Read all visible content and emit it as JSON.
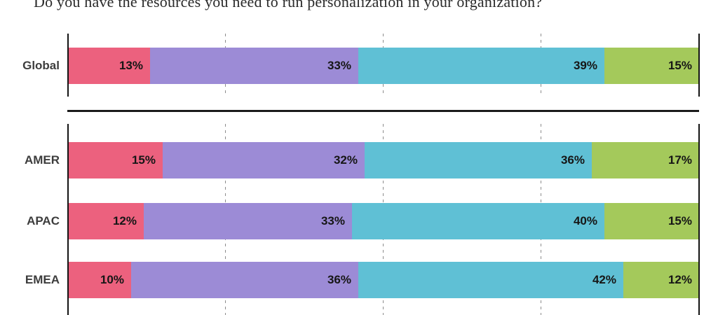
{
  "chart_data": {
    "type": "bar",
    "orientation": "horizontal",
    "stacked": true,
    "title": "Do you have the resources you need to run personalization in your organization?",
    "xlim": [
      0,
      100
    ],
    "value_suffix": "%",
    "gridlines_percent": [
      0,
      25,
      50,
      75,
      100
    ],
    "grid_style": "dashed-vertical",
    "legend_position": "none",
    "segment_names": [
      "pink",
      "purple",
      "teal",
      "green"
    ],
    "segment_colors": [
      "#EC617E",
      "#9C8BD6",
      "#5FC0D5",
      "#A4C95B"
    ],
    "axis_color": "#141414",
    "gridline_color": "#8d8d8d",
    "value_label_color": "#161616",
    "category_label_color": "#3d3d3d",
    "sections": [
      {
        "name": "global",
        "rows": [
          {
            "label": "Global",
            "values": [
              13,
              33,
              39,
              15
            ]
          }
        ]
      },
      {
        "name": "regions",
        "rows": [
          {
            "label": "AMER",
            "values": [
              15,
              32,
              36,
              17
            ]
          },
          {
            "label": "APAC",
            "values": [
              12,
              33,
              40,
              15
            ]
          },
          {
            "label": "EMEA",
            "values": [
              10,
              36,
              42,
              12
            ]
          }
        ]
      }
    ]
  }
}
